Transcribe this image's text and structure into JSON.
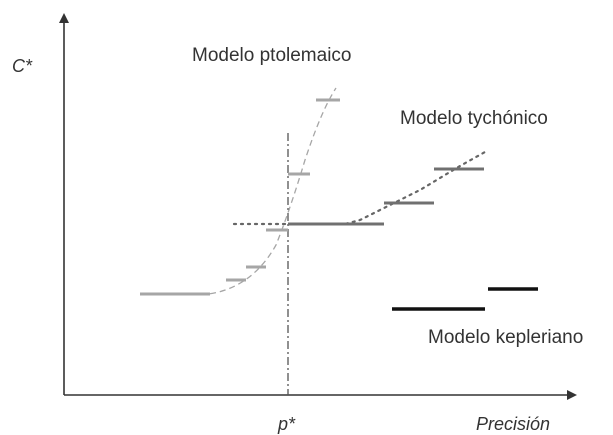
{
  "axes": {
    "y_label": "C*",
    "x_label": "Precisión",
    "p_star_label": "p*"
  },
  "models": {
    "ptolemaic": "Modelo ptolemaico",
    "tychonic": "Modelo tychónico",
    "keplerian": "Modelo kepleriano"
  },
  "colors": {
    "axis": "#333333",
    "ptolemaic": "#a6a6a6",
    "tychonic": "#707070",
    "keplerian": "#111111",
    "p_star_line": "#555555"
  }
}
